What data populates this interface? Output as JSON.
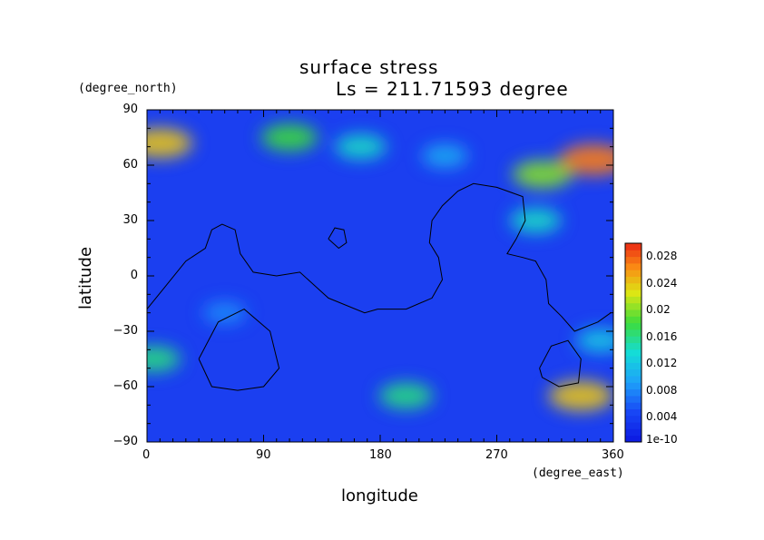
{
  "chart_data": {
    "type": "heatmap",
    "title": "surface stress",
    "subtitle": "Ls = 211.71593 degree",
    "xlabel": "longitude",
    "ylabel": "latitude",
    "x_units": "(degree_east)",
    "y_units": "(degree_north)",
    "xlim": [
      0,
      360
    ],
    "ylim": [
      -90,
      90
    ],
    "x_ticks": [
      "0",
      "90",
      "180",
      "270",
      "360"
    ],
    "y_ticks": [
      "90",
      "60",
      "30",
      "0",
      "−30",
      "−60",
      "−90"
    ],
    "colorbar": {
      "min": 1e-10,
      "max": 0.03,
      "ticks": [
        "1e-10",
        "0.004",
        "0.008",
        "0.012",
        "0.016",
        "0.02",
        "0.024",
        "0.028"
      ]
    },
    "features": [
      {
        "lon": 10,
        "lat": 72,
        "value": 0.024
      },
      {
        "lon": 110,
        "lat": 75,
        "value": 0.018
      },
      {
        "lon": 165,
        "lat": 70,
        "value": 0.014
      },
      {
        "lon": 230,
        "lat": 65,
        "value": 0.01
      },
      {
        "lon": 345,
        "lat": 63,
        "value": 0.027
      },
      {
        "lon": 305,
        "lat": 55,
        "value": 0.02
      },
      {
        "lon": 300,
        "lat": 30,
        "value": 0.014
      },
      {
        "lon": 5,
        "lat": -45,
        "value": 0.016
      },
      {
        "lon": 200,
        "lat": -65,
        "value": 0.016
      },
      {
        "lon": 335,
        "lat": -65,
        "value": 0.024
      },
      {
        "lon": 350,
        "lat": -35,
        "value": 0.012
      },
      {
        "lon": 60,
        "lat": -20,
        "value": 0.008
      }
    ],
    "contours": [
      {
        "points": [
          [
            0,
            -18
          ],
          [
            15,
            -5
          ],
          [
            30,
            8
          ],
          [
            45,
            15
          ],
          [
            50,
            25
          ],
          [
            58,
            28
          ],
          [
            68,
            25
          ],
          [
            72,
            12
          ],
          [
            82,
            2
          ],
          [
            100,
            0
          ],
          [
            118,
            2
          ],
          [
            140,
            -12
          ],
          [
            168,
            -20
          ],
          [
            178,
            -18
          ],
          [
            200,
            -18
          ],
          [
            220,
            -12
          ],
          [
            228,
            -2
          ],
          [
            225,
            10
          ],
          [
            218,
            18
          ],
          [
            220,
            30
          ],
          [
            228,
            38
          ],
          [
            240,
            46
          ],
          [
            252,
            50
          ],
          [
            270,
            48
          ],
          [
            282,
            45
          ],
          [
            290,
            43
          ],
          [
            292,
            30
          ],
          [
            285,
            20
          ],
          [
            278,
            12
          ],
          [
            290,
            10
          ],
          [
            300,
            8
          ],
          [
            308,
            -2
          ],
          [
            310,
            -15
          ],
          [
            320,
            -22
          ],
          [
            330,
            -30
          ],
          [
            348,
            -25
          ],
          [
            358,
            -20
          ]
        ]
      },
      {
        "points": [
          [
            140,
            20
          ],
          [
            145,
            26
          ],
          [
            152,
            25
          ],
          [
            154,
            18
          ],
          [
            148,
            15
          ],
          [
            140,
            20
          ]
        ]
      },
      {
        "points": [
          [
            40,
            -45
          ],
          [
            55,
            -25
          ],
          [
            75,
            -18
          ],
          [
            95,
            -30
          ],
          [
            102,
            -50
          ],
          [
            90,
            -60
          ],
          [
            70,
            -62
          ],
          [
            50,
            -60
          ],
          [
            40,
            -45
          ]
        ]
      },
      {
        "points": [
          [
            303,
            -50
          ],
          [
            312,
            -38
          ],
          [
            325,
            -35
          ],
          [
            335,
            -45
          ],
          [
            333,
            -58
          ],
          [
            318,
            -60
          ],
          [
            305,
            -55
          ],
          [
            303,
            -50
          ]
        ]
      }
    ]
  }
}
